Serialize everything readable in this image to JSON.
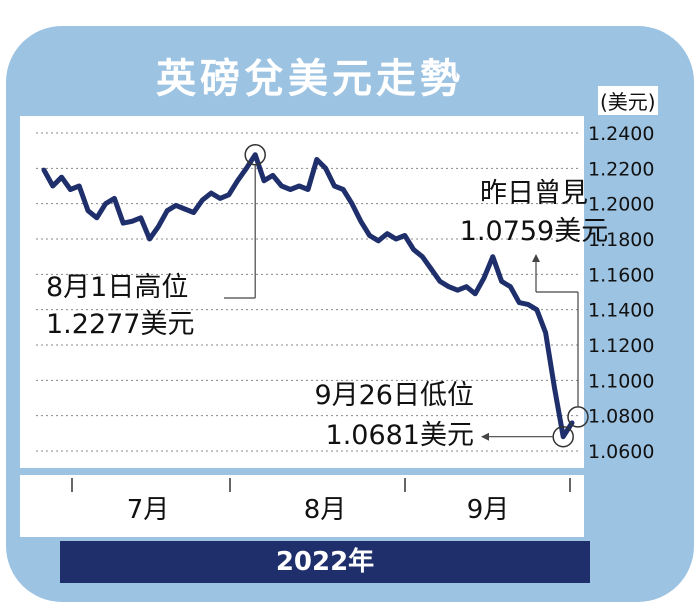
{
  "chart_data": {
    "type": "line",
    "title": "英磅兌美元走勢",
    "unit": "(美元)",
    "year_label": "2022年",
    "month_labels": [
      "7月",
      "8月",
      "9月"
    ],
    "ylim": [
      1.06,
      1.24
    ],
    "yticks": [
      "1.2400",
      "1.2200",
      "1.2000",
      "1.1800",
      "1.1600",
      "1.1400",
      "1.1200",
      "1.1000",
      "1.0800",
      "1.0600"
    ],
    "grid": true,
    "series": [
      {
        "values": [
          1.219,
          1.21,
          1.215,
          1.208,
          1.21,
          1.196,
          1.192,
          1.2,
          1.203,
          1.189,
          1.19,
          1.192,
          1.18,
          1.187,
          1.196,
          1.199,
          1.197,
          1.195,
          1.202,
          1.206,
          1.203,
          1.205,
          1.213,
          1.22,
          1.2277,
          1.213,
          1.216,
          1.21,
          1.208,
          1.21,
          1.208,
          1.225,
          1.22,
          1.21,
          1.208,
          1.2,
          1.19,
          1.182,
          1.179,
          1.183,
          1.18,
          1.182,
          1.174,
          1.17,
          1.163,
          1.156,
          1.153,
          1.151,
          1.153,
          1.149,
          1.158,
          1.17,
          1.156,
          1.153,
          1.144,
          1.143,
          1.14,
          1.127,
          1.096,
          1.0681,
          1.0759
        ]
      }
    ],
    "annotations": [
      {
        "key": "high",
        "line1": "8月1日高位",
        "line2": "1.2277美元"
      },
      {
        "key": "low",
        "line1": "9月26日低位",
        "line2": "1.0681美元"
      },
      {
        "key": "latest",
        "line1": "昨日曾見",
        "line2": "1.0759美元"
      }
    ],
    "colors": {
      "line": "#1f2f6b",
      "frame": "#9dc3e2",
      "year_bar": "#1f2f6b",
      "grid": "#888888"
    }
  }
}
